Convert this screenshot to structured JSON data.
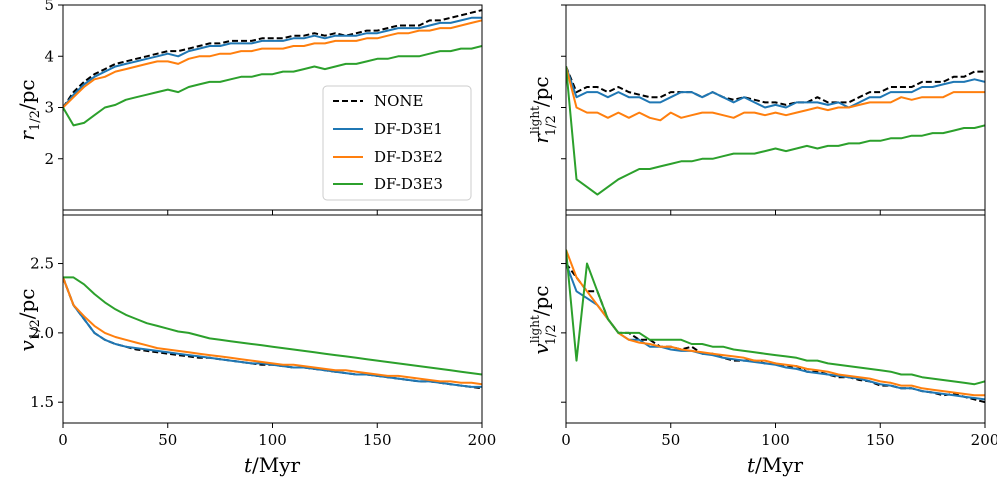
{
  "chart_data": {
    "type": "line",
    "x": [
      0,
      5,
      10,
      15,
      20,
      25,
      30,
      35,
      40,
      45,
      50,
      55,
      60,
      65,
      70,
      75,
      80,
      85,
      90,
      95,
      100,
      105,
      110,
      115,
      120,
      125,
      130,
      135,
      140,
      145,
      150,
      155,
      160,
      165,
      170,
      175,
      180,
      185,
      190,
      195,
      200
    ],
    "xlim": [
      0,
      200
    ],
    "xticks": [
      0,
      50,
      100,
      150,
      200
    ],
    "xlabel_var": "t",
    "xlabel_unit": "/Myr",
    "legend": {
      "location": "upper-right of top-left panel",
      "entries": [
        {
          "label": "NONE",
          "color": "#000000",
          "dash": "dashed"
        },
        {
          "label": "DF-D3E1",
          "color": "#1f77b4",
          "dash": "solid"
        },
        {
          "label": "DF-D3E2",
          "color": "#ff7f0e",
          "dash": "solid"
        },
        {
          "label": "DF-D3E3",
          "color": "#2ca02c",
          "dash": "solid"
        }
      ]
    },
    "panels": [
      {
        "position": "top-left",
        "ylabel_var": "r",
        "ylabel_sub": "1/2",
        "ylabel_sup": "",
        "ylabel_unit": "/pc",
        "ylim": [
          1,
          5
        ],
        "yticks": [
          2,
          3,
          4,
          5
        ],
        "show_yticklabels": true,
        "show_xticklabels": false,
        "series": [
          {
            "name": "NONE",
            "values": [
              3.0,
              3.3,
              3.5,
              3.65,
              3.75,
              3.85,
              3.9,
              3.95,
              4.0,
              4.05,
              4.1,
              4.1,
              4.15,
              4.2,
              4.25,
              4.25,
              4.3,
              4.3,
              4.3,
              4.35,
              4.35,
              4.35,
              4.4,
              4.4,
              4.45,
              4.4,
              4.45,
              4.4,
              4.45,
              4.5,
              4.5,
              4.55,
              4.6,
              4.6,
              4.6,
              4.7,
              4.7,
              4.75,
              4.8,
              4.85,
              4.9
            ]
          },
          {
            "name": "DF-D3E1",
            "values": [
              3.0,
              3.25,
              3.45,
              3.6,
              3.7,
              3.8,
              3.85,
              3.9,
              3.95,
              4.0,
              4.05,
              4.0,
              4.1,
              4.15,
              4.2,
              4.2,
              4.25,
              4.25,
              4.25,
              4.3,
              4.3,
              4.3,
              4.35,
              4.35,
              4.4,
              4.35,
              4.4,
              4.4,
              4.4,
              4.45,
              4.45,
              4.5,
              4.55,
              4.55,
              4.55,
              4.6,
              4.65,
              4.65,
              4.7,
              4.75,
              4.75
            ]
          },
          {
            "name": "DF-D3E2",
            "values": [
              3.0,
              3.2,
              3.4,
              3.55,
              3.6,
              3.7,
              3.75,
              3.8,
              3.85,
              3.9,
              3.9,
              3.85,
              3.95,
              4.0,
              4.0,
              4.05,
              4.05,
              4.1,
              4.1,
              4.15,
              4.15,
              4.15,
              4.2,
              4.2,
              4.25,
              4.25,
              4.3,
              4.3,
              4.3,
              4.35,
              4.35,
              4.4,
              4.45,
              4.45,
              4.5,
              4.5,
              4.55,
              4.55,
              4.6,
              4.65,
              4.7
            ]
          },
          {
            "name": "DF-D3E3",
            "values": [
              3.0,
              2.65,
              2.7,
              2.85,
              3.0,
              3.05,
              3.15,
              3.2,
              3.25,
              3.3,
              3.35,
              3.3,
              3.4,
              3.45,
              3.5,
              3.5,
              3.55,
              3.6,
              3.6,
              3.65,
              3.65,
              3.7,
              3.7,
              3.75,
              3.8,
              3.75,
              3.8,
              3.85,
              3.85,
              3.9,
              3.95,
              3.95,
              4.0,
              4.0,
              4.0,
              4.05,
              4.1,
              4.1,
              4.15,
              4.15,
              4.2
            ]
          }
        ]
      },
      {
        "position": "top-right",
        "ylabel_var": "r",
        "ylabel_sub": "1/2",
        "ylabel_sup": "light",
        "ylabel_unit": "/pc",
        "ylim": [
          1,
          5
        ],
        "yticks": [
          2,
          3,
          4,
          5
        ],
        "show_yticklabels": false,
        "show_xticklabels": false,
        "series": [
          {
            "name": "NONE",
            "values": [
              3.8,
              3.3,
              3.4,
              3.4,
              3.3,
              3.4,
              3.3,
              3.25,
              3.2,
              3.2,
              3.3,
              3.3,
              3.3,
              3.2,
              3.3,
              3.2,
              3.15,
              3.2,
              3.15,
              3.1,
              3.1,
              3.05,
              3.1,
              3.1,
              3.2,
              3.1,
              3.1,
              3.1,
              3.2,
              3.3,
              3.3,
              3.4,
              3.4,
              3.4,
              3.5,
              3.5,
              3.5,
              3.6,
              3.6,
              3.7,
              3.7
            ]
          },
          {
            "name": "DF-D3E1",
            "values": [
              3.8,
              3.2,
              3.3,
              3.3,
              3.2,
              3.3,
              3.2,
              3.2,
              3.1,
              3.1,
              3.2,
              3.3,
              3.3,
              3.2,
              3.3,
              3.2,
              3.1,
              3.2,
              3.1,
              3.0,
              3.05,
              3.0,
              3.1,
              3.1,
              3.1,
              3.05,
              3.1,
              3.0,
              3.1,
              3.2,
              3.2,
              3.3,
              3.3,
              3.3,
              3.4,
              3.4,
              3.45,
              3.5,
              3.5,
              3.55,
              3.5
            ]
          },
          {
            "name": "DF-D3E2",
            "values": [
              3.8,
              3.0,
              2.9,
              2.9,
              2.8,
              2.9,
              2.8,
              2.9,
              2.8,
              2.75,
              2.9,
              2.8,
              2.85,
              2.9,
              2.9,
              2.85,
              2.8,
              2.9,
              2.9,
              2.85,
              2.9,
              2.85,
              2.9,
              2.95,
              3.0,
              2.95,
              3.0,
              3.0,
              3.05,
              3.1,
              3.1,
              3.1,
              3.2,
              3.15,
              3.2,
              3.2,
              3.2,
              3.3,
              3.3,
              3.3,
              3.3
            ]
          },
          {
            "name": "DF-D3E3",
            "values": [
              3.8,
              1.6,
              1.45,
              1.3,
              1.45,
              1.6,
              1.7,
              1.8,
              1.8,
              1.85,
              1.9,
              1.95,
              1.95,
              2.0,
              2.0,
              2.05,
              2.1,
              2.1,
              2.1,
              2.15,
              2.2,
              2.15,
              2.2,
              2.25,
              2.2,
              2.25,
              2.25,
              2.3,
              2.3,
              2.35,
              2.35,
              2.4,
              2.4,
              2.45,
              2.45,
              2.5,
              2.5,
              2.55,
              2.6,
              2.6,
              2.65
            ]
          }
        ]
      },
      {
        "position": "bottom-left",
        "ylabel_var": "v",
        "ylabel_sub": "1/2",
        "ylabel_sup": "",
        "ylabel_unit": "/pc",
        "ylim": [
          1.35,
          2.85
        ],
        "yticks": [
          1.5,
          2.0,
          2.5
        ],
        "ytick_labels": [
          "1.5",
          "2.0",
          "2.5"
        ],
        "show_yticklabels": true,
        "show_xticklabels": true,
        "series": [
          {
            "name": "NONE",
            "values": [
              2.4,
              2.2,
              2.1,
              2.0,
              1.95,
              1.92,
              1.9,
              1.88,
              1.87,
              1.86,
              1.85,
              1.84,
              1.83,
              1.82,
              1.82,
              1.81,
              1.8,
              1.79,
              1.78,
              1.77,
              1.77,
              1.76,
              1.75,
              1.75,
              1.74,
              1.73,
              1.72,
              1.71,
              1.7,
              1.7,
              1.69,
              1.68,
              1.67,
              1.66,
              1.65,
              1.65,
              1.64,
              1.63,
              1.62,
              1.61,
              1.6
            ]
          },
          {
            "name": "DF-D3E1",
            "values": [
              2.4,
              2.2,
              2.1,
              2.0,
              1.95,
              1.92,
              1.9,
              1.89,
              1.88,
              1.87,
              1.86,
              1.85,
              1.84,
              1.83,
              1.82,
              1.81,
              1.8,
              1.79,
              1.78,
              1.78,
              1.77,
              1.76,
              1.75,
              1.75,
              1.74,
              1.73,
              1.72,
              1.71,
              1.7,
              1.7,
              1.69,
              1.68,
              1.67,
              1.66,
              1.65,
              1.65,
              1.64,
              1.63,
              1.62,
              1.61,
              1.61
            ]
          },
          {
            "name": "DF-D3E2",
            "values": [
              2.4,
              2.2,
              2.12,
              2.05,
              2.0,
              1.97,
              1.95,
              1.93,
              1.91,
              1.89,
              1.88,
              1.87,
              1.86,
              1.85,
              1.84,
              1.83,
              1.82,
              1.81,
              1.8,
              1.79,
              1.78,
              1.77,
              1.77,
              1.76,
              1.75,
              1.74,
              1.73,
              1.73,
              1.72,
              1.71,
              1.7,
              1.69,
              1.69,
              1.68,
              1.67,
              1.66,
              1.65,
              1.65,
              1.64,
              1.64,
              1.63
            ]
          },
          {
            "name": "DF-D3E3",
            "values": [
              2.4,
              2.4,
              2.35,
              2.28,
              2.22,
              2.17,
              2.13,
              2.1,
              2.07,
              2.05,
              2.03,
              2.01,
              2.0,
              1.98,
              1.96,
              1.95,
              1.94,
              1.93,
              1.92,
              1.91,
              1.9,
              1.89,
              1.88,
              1.87,
              1.86,
              1.85,
              1.84,
              1.83,
              1.82,
              1.81,
              1.8,
              1.79,
              1.78,
              1.77,
              1.76,
              1.75,
              1.74,
              1.73,
              1.72,
              1.71,
              1.7
            ]
          }
        ]
      },
      {
        "position": "bottom-right",
        "ylabel_var": "v",
        "ylabel_sub": "1/2",
        "ylabel_sup": "light",
        "ylabel_unit": "/pc",
        "ylim": [
          1.35,
          2.85
        ],
        "yticks": [
          1.5,
          2.0,
          2.5
        ],
        "show_yticklabels": false,
        "show_xticklabels": true,
        "series": [
          {
            "name": "NONE",
            "values": [
              2.5,
              2.4,
              2.3,
              2.3,
              2.1,
              2.0,
              2.0,
              1.95,
              1.95,
              1.9,
              1.9,
              1.88,
              1.9,
              1.85,
              1.85,
              1.82,
              1.8,
              1.8,
              1.8,
              1.78,
              1.78,
              1.75,
              1.76,
              1.72,
              1.72,
              1.7,
              1.68,
              1.68,
              1.66,
              1.65,
              1.62,
              1.62,
              1.6,
              1.6,
              1.58,
              1.57,
              1.55,
              1.56,
              1.54,
              1.52,
              1.5
            ]
          },
          {
            "name": "DF-D3E1",
            "values": [
              2.5,
              2.3,
              2.25,
              2.2,
              2.1,
              2.0,
              1.95,
              1.95,
              1.9,
              1.9,
              1.88,
              1.87,
              1.87,
              1.85,
              1.84,
              1.82,
              1.81,
              1.8,
              1.79,
              1.78,
              1.77,
              1.75,
              1.74,
              1.72,
              1.71,
              1.7,
              1.69,
              1.68,
              1.67,
              1.65,
              1.63,
              1.62,
              1.6,
              1.6,
              1.58,
              1.57,
              1.56,
              1.55,
              1.54,
              1.53,
              1.52
            ]
          },
          {
            "name": "DF-D3E2",
            "values": [
              2.6,
              2.4,
              2.3,
              2.2,
              2.1,
              2.0,
              1.95,
              1.93,
              1.92,
              1.9,
              1.9,
              1.88,
              1.87,
              1.86,
              1.85,
              1.84,
              1.83,
              1.82,
              1.8,
              1.8,
              1.78,
              1.77,
              1.76,
              1.74,
              1.73,
              1.72,
              1.7,
              1.69,
              1.68,
              1.67,
              1.65,
              1.64,
              1.62,
              1.62,
              1.6,
              1.59,
              1.58,
              1.57,
              1.56,
              1.55,
              1.55
            ]
          },
          {
            "name": "DF-D3E3",
            "values": [
              2.6,
              1.8,
              2.5,
              2.3,
              2.1,
              2.0,
              2.0,
              2.0,
              1.95,
              1.95,
              1.95,
              1.95,
              1.92,
              1.92,
              1.9,
              1.9,
              1.88,
              1.87,
              1.86,
              1.85,
              1.84,
              1.83,
              1.82,
              1.8,
              1.8,
              1.78,
              1.77,
              1.76,
              1.75,
              1.74,
              1.73,
              1.72,
              1.7,
              1.7,
              1.68,
              1.67,
              1.66,
              1.65,
              1.64,
              1.63,
              1.65
            ]
          }
        ]
      }
    ]
  }
}
